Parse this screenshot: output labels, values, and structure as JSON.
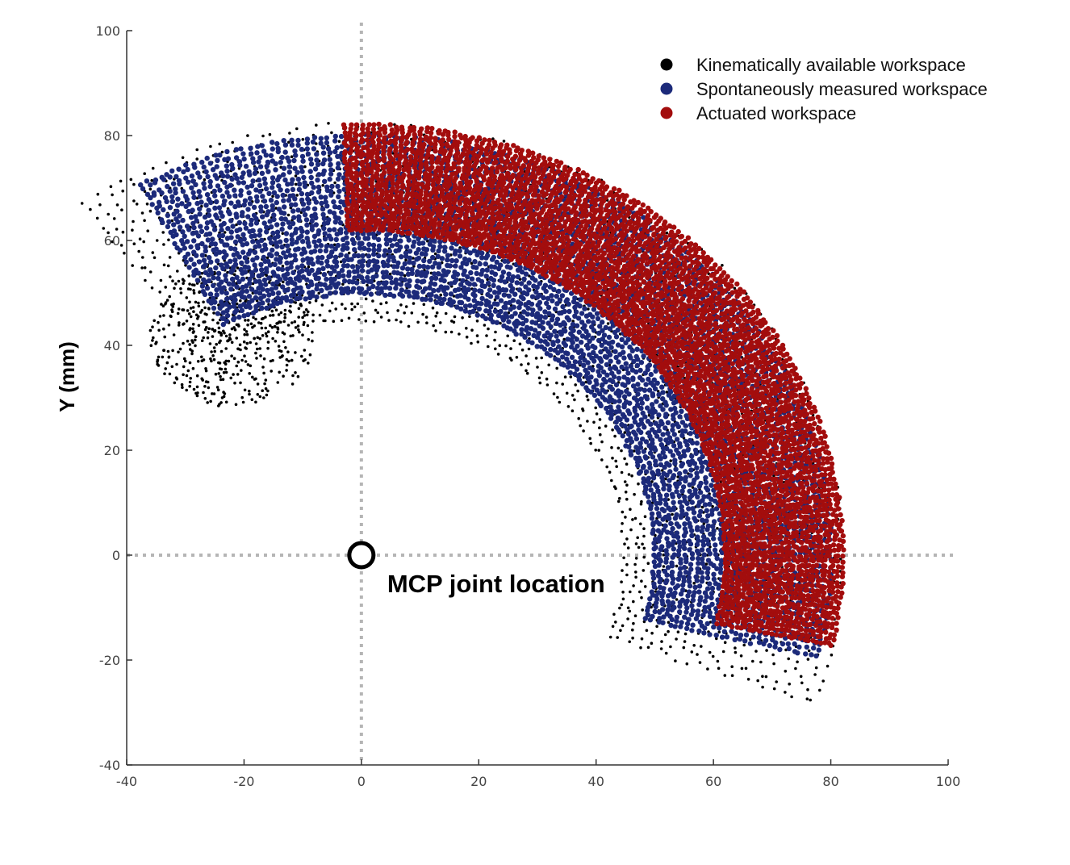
{
  "chart_data": {
    "type": "scatter",
    "title": "",
    "xlabel": "",
    "ylabel": "Y (mm)",
    "xlim": [
      -40,
      100
    ],
    "ylim": [
      -40,
      100
    ],
    "xticks": [
      "-40",
      "-20",
      "0",
      "20",
      "40",
      "60",
      "80",
      "100"
    ],
    "yticks": [
      "-40",
      "-20",
      "0",
      "20",
      "40",
      "60",
      "80",
      "100"
    ],
    "grid": false,
    "reference_lines": {
      "x": 0,
      "y": 0,
      "style": "dotted",
      "color": "#b5b5b5"
    },
    "legend": {
      "placement": "top-right",
      "entries": [
        {
          "label": "Kinematically available workspace",
          "color": "#000000"
        },
        {
          "label": "Spontaneously measured workspace",
          "color": "#1c2a7a"
        },
        {
          "label": "Actuated workspace",
          "color": "#a30d0d"
        }
      ]
    },
    "series": [
      {
        "name": "Kinematically available workspace",
        "color": "#000000",
        "region": {
          "center": [
            0,
            0
          ],
          "radius_range": [
            45,
            82
          ],
          "angle_range_deg": [
            -20,
            125
          ],
          "extra_lobe": {
            "center": [
              -22,
              42
            ],
            "radius_range": [
              0,
              14
            ]
          }
        }
      },
      {
        "name": "Spontaneously measured workspace",
        "color": "#1c2a7a",
        "region": {
          "center": [
            0,
            0
          ],
          "radius_range": [
            50,
            80
          ],
          "angle_range_deg": [
            -14,
            118
          ]
        }
      },
      {
        "name": "Actuated workspace",
        "color": "#a30d0d",
        "region": {
          "center": [
            0,
            0
          ],
          "radius_range": [
            62,
            82
          ],
          "angle_range_deg": [
            -12,
            92
          ]
        }
      }
    ],
    "annotations": [
      {
        "text": "MCP joint location",
        "x": 0,
        "y": 0,
        "marker": "open-circle"
      }
    ]
  }
}
